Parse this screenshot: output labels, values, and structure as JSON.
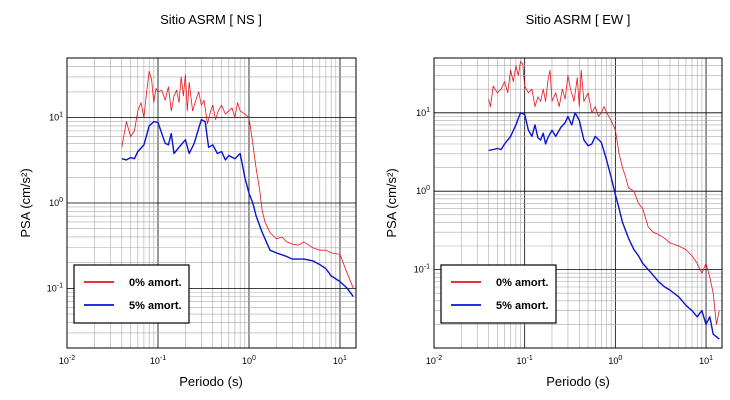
{
  "chart_data": [
    {
      "type": "line",
      "title": "Sitio ASRM [ NS ]",
      "xlabel": "Periodo (s)",
      "ylabel": "PSA (cm/s²)",
      "xscale": "log",
      "yscale": "log",
      "xlim": [
        0.01,
        15
      ],
      "ylim": [
        0.02,
        50
      ],
      "xticks": [
        "10-2",
        "10-1",
        "100",
        "101"
      ],
      "yticks": [
        "10-1",
        "100",
        "101"
      ],
      "grid": true,
      "legend_position": "bottom-left",
      "series": [
        {
          "name": "0% amort.",
          "color": "#e8141c",
          "x": [
            0.04,
            0.045,
            0.05,
            0.055,
            0.06,
            0.065,
            0.07,
            0.075,
            0.08,
            0.085,
            0.09,
            0.095,
            0.1,
            0.11,
            0.12,
            0.13,
            0.14,
            0.15,
            0.16,
            0.17,
            0.18,
            0.19,
            0.2,
            0.21,
            0.22,
            0.24,
            0.26,
            0.28,
            0.3,
            0.32,
            0.35,
            0.38,
            0.4,
            0.43,
            0.46,
            0.5,
            0.55,
            0.6,
            0.65,
            0.7,
            0.75,
            0.8,
            0.9,
            1.0,
            1.1,
            1.2,
            1.3,
            1.4,
            1.5,
            1.7,
            2.0,
            2.3,
            2.6,
            3.0,
            3.5,
            4.0,
            5.0,
            6.0,
            7.0,
            8.0,
            10.0,
            12.0,
            14.0
          ],
          "y": [
            4.5,
            9.0,
            6.0,
            7.0,
            12.0,
            15.0,
            10.0,
            20.0,
            35.0,
            28.0,
            15.0,
            22.0,
            20.0,
            21.0,
            16.0,
            23.0,
            12.0,
            18.0,
            21.0,
            15.0,
            30.0,
            18.0,
            32.0,
            12.0,
            26.0,
            12.0,
            16.0,
            20.0,
            14.0,
            16.0,
            8.5,
            12.0,
            14.0,
            9.5,
            12.0,
            14.0,
            11.0,
            12.0,
            13.0,
            10.0,
            15.0,
            12.0,
            11.0,
            10.0,
            5.0,
            2.5,
            1.5,
            0.8,
            0.6,
            0.45,
            0.38,
            0.4,
            0.35,
            0.33,
            0.32,
            0.35,
            0.3,
            0.28,
            0.28,
            0.26,
            0.25,
            0.15,
            0.1
          ]
        },
        {
          "name": "5% amort.",
          "color": "#0a14d0",
          "x": [
            0.04,
            0.045,
            0.05,
            0.055,
            0.06,
            0.07,
            0.08,
            0.09,
            0.1,
            0.11,
            0.12,
            0.13,
            0.14,
            0.15,
            0.17,
            0.2,
            0.22,
            0.25,
            0.28,
            0.3,
            0.33,
            0.36,
            0.4,
            0.45,
            0.5,
            0.55,
            0.6,
            0.7,
            0.8,
            0.9,
            1.0,
            1.1,
            1.2,
            1.4,
            1.7,
            2.0,
            2.5,
            3.0,
            4.0,
            5.0,
            6.0,
            7.0,
            8.0,
            10.0,
            12.0,
            14.0
          ],
          "y": [
            3.3,
            3.2,
            3.4,
            3.3,
            4.0,
            4.8,
            8.0,
            9.0,
            8.8,
            6.5,
            5.0,
            4.8,
            6.5,
            3.8,
            4.5,
            5.5,
            3.8,
            5.0,
            7.5,
            9.5,
            9.0,
            4.5,
            4.8,
            3.8,
            4.0,
            3.2,
            3.6,
            3.3,
            3.8,
            2.0,
            1.3,
            1.0,
            0.7,
            0.45,
            0.28,
            0.26,
            0.24,
            0.22,
            0.22,
            0.21,
            0.19,
            0.17,
            0.14,
            0.12,
            0.1,
            0.08
          ]
        }
      ]
    },
    {
      "type": "line",
      "title": "Sitio ASRM [ EW ]",
      "xlabel": "Periodo (s)",
      "ylabel": "PSA (cm/s²)",
      "xscale": "log",
      "yscale": "log",
      "xlim": [
        0.01,
        15
      ],
      "ylim": [
        0.01,
        50
      ],
      "xticks": [
        "10-2",
        "10-1",
        "100",
        "101"
      ],
      "yticks": [
        "10-1",
        "100",
        "101"
      ],
      "grid": true,
      "legend_position": "bottom-left",
      "series": [
        {
          "name": "0% amort.",
          "color": "#e8141c",
          "x": [
            0.04,
            0.042,
            0.045,
            0.05,
            0.055,
            0.06,
            0.065,
            0.07,
            0.075,
            0.08,
            0.085,
            0.09,
            0.095,
            0.1,
            0.11,
            0.12,
            0.13,
            0.14,
            0.15,
            0.16,
            0.17,
            0.18,
            0.19,
            0.2,
            0.22,
            0.24,
            0.26,
            0.28,
            0.3,
            0.32,
            0.35,
            0.38,
            0.4,
            0.42,
            0.45,
            0.5,
            0.55,
            0.6,
            0.65,
            0.7,
            0.75,
            0.8,
            0.9,
            1.0,
            1.1,
            1.2,
            1.3,
            1.4,
            1.6,
            1.8,
            2.0,
            2.3,
            2.6,
            3.0,
            3.5,
            4.0,
            5.0,
            6.0,
            7.0,
            8.0,
            9.0,
            10.0,
            11.0,
            12.0,
            13.0,
            14.0
          ],
          "y": [
            15.0,
            12.0,
            22.0,
            18.0,
            20.0,
            25.0,
            18.0,
            35.0,
            25.0,
            40.0,
            30.0,
            45.0,
            42.0,
            22.0,
            18.0,
            20.0,
            12.0,
            16.0,
            14.0,
            20.0,
            14.0,
            25.0,
            35.0,
            14.0,
            18.0,
            12.0,
            20.0,
            15.0,
            30.0,
            20.0,
            14.0,
            28.0,
            12.0,
            35.0,
            14.0,
            18.0,
            10.0,
            12.0,
            9.0,
            10.0,
            12.0,
            10.0,
            8.0,
            6.0,
            3.0,
            2.0,
            1.5,
            1.1,
            1.0,
            0.7,
            0.6,
            0.35,
            0.3,
            0.28,
            0.25,
            0.22,
            0.2,
            0.18,
            0.15,
            0.12,
            0.09,
            0.12,
            0.08,
            0.05,
            0.02,
            0.03
          ]
        },
        {
          "name": "5% amort.",
          "color": "#0a14d0",
          "x": [
            0.04,
            0.045,
            0.05,
            0.055,
            0.06,
            0.07,
            0.08,
            0.09,
            0.1,
            0.11,
            0.12,
            0.13,
            0.14,
            0.15,
            0.16,
            0.17,
            0.18,
            0.2,
            0.22,
            0.25,
            0.28,
            0.3,
            0.33,
            0.36,
            0.4,
            0.45,
            0.5,
            0.55,
            0.6,
            0.7,
            0.8,
            0.9,
            1.0,
            1.1,
            1.2,
            1.4,
            1.6,
            1.8,
            2.0,
            2.5,
            3.0,
            3.5,
            4.0,
            5.0,
            6.0,
            7.0,
            8.0,
            9.0,
            10.0,
            11.0,
            12.0,
            14.0
          ],
          "y": [
            3.3,
            3.4,
            3.5,
            3.4,
            4.0,
            5.0,
            7.0,
            10.0,
            9.5,
            6.0,
            5.0,
            7.0,
            4.8,
            4.5,
            5.5,
            4.0,
            4.8,
            6.0,
            5.0,
            6.5,
            7.5,
            9.0,
            7.0,
            10.0,
            8.0,
            4.5,
            3.8,
            4.0,
            5.0,
            4.2,
            2.5,
            1.5,
            0.9,
            0.6,
            0.4,
            0.25,
            0.18,
            0.15,
            0.12,
            0.09,
            0.07,
            0.06,
            0.055,
            0.045,
            0.035,
            0.03,
            0.025,
            0.03,
            0.02,
            0.025,
            0.015,
            0.013
          ]
        }
      ]
    }
  ]
}
